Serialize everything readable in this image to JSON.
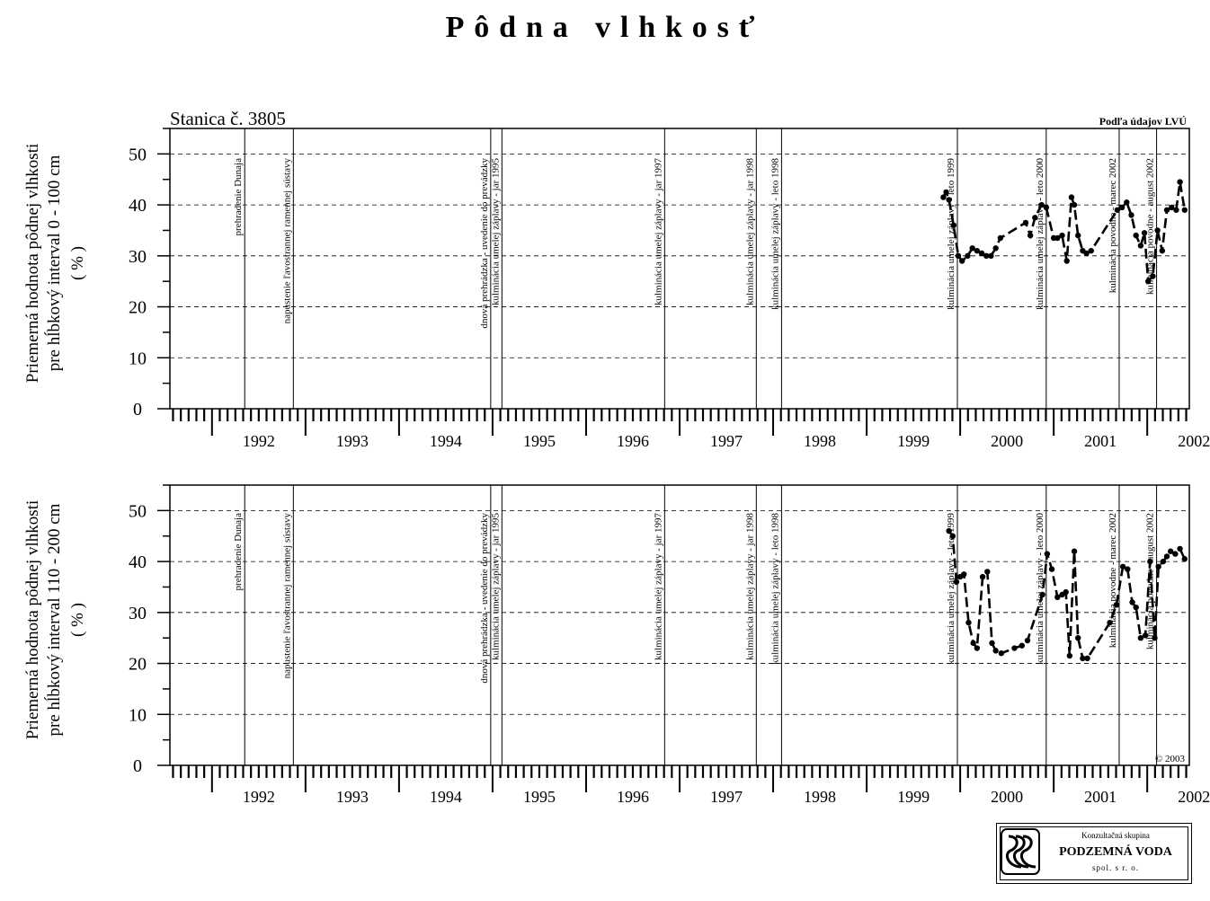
{
  "title": "Pôdna vlhkosť",
  "station": "Stanica č. 3805",
  "source": "Podľa údajov LVÚ",
  "copyright": "© 2003",
  "logo": {
    "line1": "Konzultačná skupina",
    "line2": "PODZEMNÁ VODA",
    "line3": "spol. s r. o."
  },
  "colors": {
    "ink": "#000000",
    "grid": "#000000",
    "background": "#ffffff"
  },
  "chart_data": [
    {
      "type": "line",
      "ylabel": [
        "Priemerná hodnota pôdnej vlhkosti",
        "pre hĺbkový interval 0 - 100 cm",
        "( % )"
      ],
      "ylim": [
        0,
        55
      ],
      "yticks": [
        0,
        10,
        20,
        30,
        40,
        50
      ],
      "xlim": [
        1991.55,
        2002.45
      ],
      "xticks": [
        "1992",
        "1993",
        "1994",
        "1995",
        "1996",
        "1997",
        "1998",
        "1999",
        "2000",
        "2001",
        "2002"
      ],
      "grid": "horizontal dashed",
      "line_style": "dashed with markers",
      "events": [
        {
          "x": 1992.35,
          "label": "prehradenie Dunaja"
        },
        {
          "x": 1992.87,
          "label": "napustenie ľavostrannej ramennej sústavy"
        },
        {
          "x": 1994.98,
          "label": "dnová prehrádzka - uvedenie do prevádzky"
        },
        {
          "x": 1995.1,
          "label": "kulminácia umelej záplavy - jar 1995"
        },
        {
          "x": 1996.84,
          "label": "kulminácia umelej záplavy - jar 1997"
        },
        {
          "x": 1997.82,
          "label": "kulminácia umelej záplavy - jar 1998"
        },
        {
          "x": 1998.09,
          "label": "kulminácia umelej záplavy - leto 1998"
        },
        {
          "x": 1999.97,
          "label": "kulminácia umelej záplavy - leto 1999"
        },
        {
          "x": 2000.92,
          "label": "kulminácia umelej záplavy - leto 2000"
        },
        {
          "x": 2001.7,
          "label": "kulminácia povodne - marec 2002"
        },
        {
          "x": 2002.1,
          "label": "kulminácia povodne - august 2002"
        }
      ],
      "series": [
        {
          "x": [
            1999.82,
            1999.85,
            1999.88,
            1999.93,
            1999.98,
            2000.02,
            2000.08,
            2000.13,
            2000.18,
            2000.23,
            2000.28,
            2000.33,
            2000.38,
            2000.43,
            2000.7,
            2000.75,
            2000.8,
            2000.87,
            2000.92,
            2001.0,
            2001.04,
            2001.09,
            2001.14,
            2001.19,
            2001.22,
            2001.26,
            2001.31,
            2001.35,
            2001.4,
            2001.68,
            2001.73,
            2001.78,
            2001.83,
            2001.88,
            2001.93,
            2001.97,
            2002.01,
            2002.06,
            2002.11,
            2002.16,
            2002.21,
            2002.26,
            2002.31,
            2002.35,
            2002.4
          ],
          "y": [
            41.5,
            42.5,
            41.0,
            36.0,
            30.0,
            29.0,
            30.0,
            31.5,
            31.0,
            30.5,
            30.0,
            30.0,
            31.5,
            33.5,
            36.5,
            34.0,
            37.5,
            40.0,
            39.5,
            33.5,
            33.5,
            34.0,
            29.0,
            41.5,
            40.0,
            34.0,
            31.0,
            30.5,
            31.0,
            39.0,
            39.5,
            40.5,
            38.0,
            34.0,
            32.0,
            34.5,
            25.0,
            26.0,
            35.0,
            31.0,
            39.0,
            39.5,
            39.0,
            44.5,
            39.0
          ]
        }
      ]
    },
    {
      "type": "line",
      "ylabel": [
        "Priemerná hodnota pôdnej vlhkosti",
        "pre hĺbkový interval 110 - 200 cm",
        "( % )"
      ],
      "ylim": [
        0,
        55
      ],
      "yticks": [
        0,
        10,
        20,
        30,
        40,
        50
      ],
      "xlim": [
        1991.55,
        2002.45
      ],
      "xticks": [
        "1992",
        "1993",
        "1994",
        "1995",
        "1996",
        "1997",
        "1998",
        "1999",
        "2000",
        "2001",
        "2002"
      ],
      "grid": "horizontal dashed",
      "line_style": "dashed with markers",
      "events": [
        {
          "x": 1992.35,
          "label": "prehradenie Dunaja"
        },
        {
          "x": 1992.87,
          "label": "napustenie ľavostrannej ramennej sústavy"
        },
        {
          "x": 1994.98,
          "label": "dnová prehrádzka - uvedenie do prevádzky"
        },
        {
          "x": 1995.1,
          "label": "kulminácia umelej záplavy - jar 1995"
        },
        {
          "x": 1996.84,
          "label": "kulminácia umelej záplavy - jar 1997"
        },
        {
          "x": 1997.82,
          "label": "kulminácia umelej záplavy - jar 1998"
        },
        {
          "x": 1998.09,
          "label": "kulminácia umelej záplavy - leto 1998"
        },
        {
          "x": 1999.97,
          "label": "kulminácia umelej záplavy - leto 1999"
        },
        {
          "x": 2000.92,
          "label": "kulminácia umelej záplavy - leto 2000"
        },
        {
          "x": 2001.7,
          "label": "kulminácia povodne - marec 2002"
        },
        {
          "x": 2002.1,
          "label": "kulminácia povodne - august 2002"
        }
      ],
      "series": [
        {
          "x": [
            1999.88,
            1999.92,
            1999.96,
            2000.0,
            2000.04,
            2000.09,
            2000.14,
            2000.18,
            2000.24,
            2000.29,
            2000.34,
            2000.38,
            2000.44,
            2000.58,
            2000.66,
            2000.72,
            2000.88,
            2000.93,
            2000.98,
            2001.04,
            2001.09,
            2001.13,
            2001.17,
            2001.22,
            2001.26,
            2001.31,
            2001.36,
            2001.6,
            2001.67,
            2001.74,
            2001.79,
            2001.84,
            2001.88,
            2001.93,
            2001.98,
            2002.03,
            2002.08,
            2002.12,
            2002.17,
            2002.21,
            2002.25,
            2002.3,
            2002.35,
            2002.4
          ],
          "y": [
            46.0,
            45.0,
            36.0,
            37.0,
            37.5,
            28.0,
            24.0,
            23.0,
            37.0,
            38.0,
            24.0,
            22.5,
            22.0,
            23.0,
            23.5,
            24.5,
            33.5,
            41.5,
            38.5,
            33.0,
            33.5,
            34.0,
            21.5,
            42.0,
            25.0,
            21.0,
            21.0,
            28.0,
            31.5,
            39.0,
            38.5,
            32.0,
            31.0,
            25.0,
            25.5,
            40.0,
            25.0,
            39.0,
            40.0,
            41.0,
            42.0,
            41.5,
            42.5,
            40.5
          ]
        }
      ]
    }
  ]
}
